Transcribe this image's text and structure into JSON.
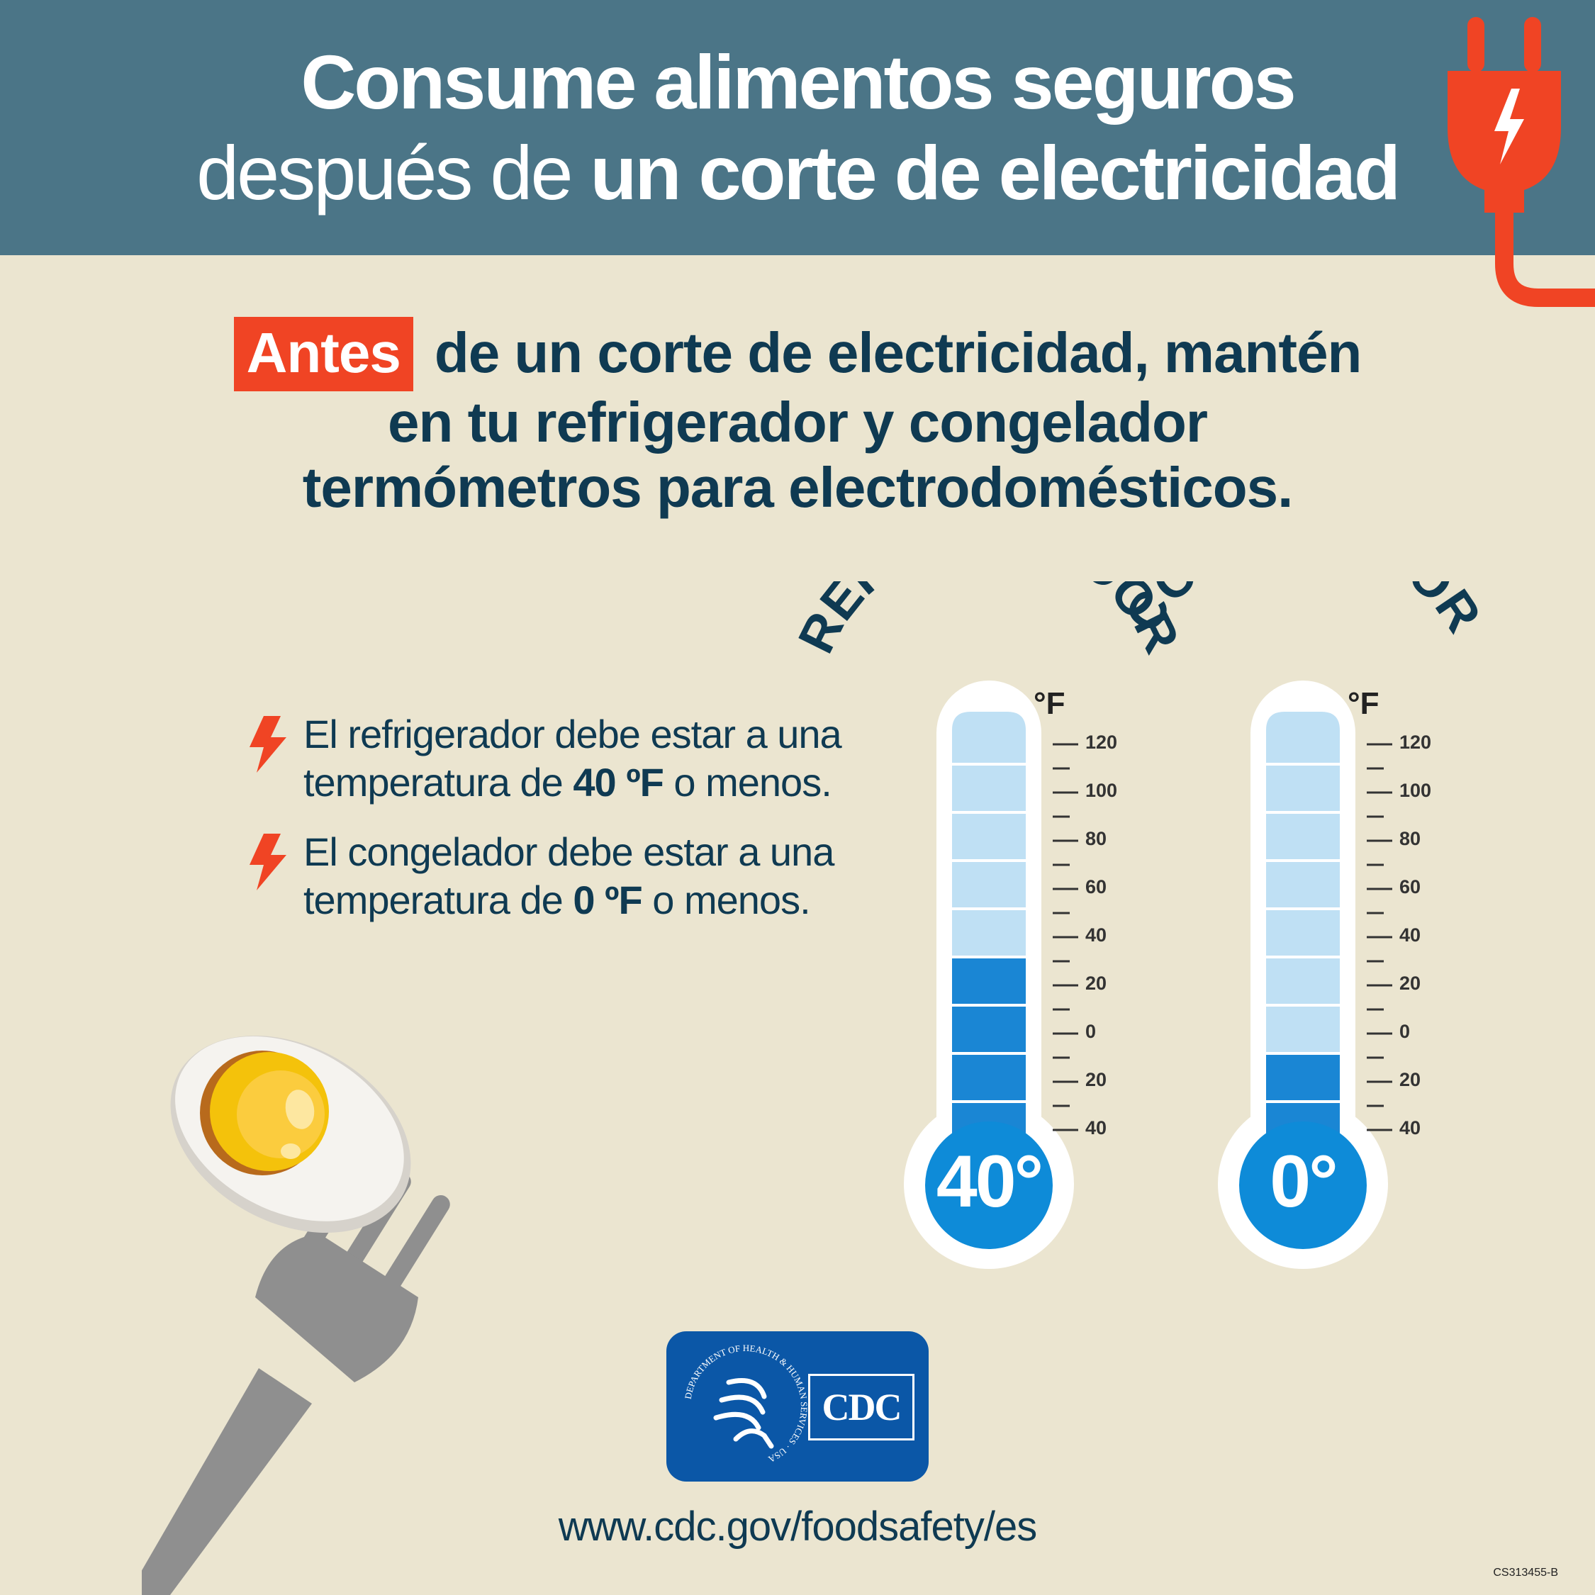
{
  "header": {
    "title_line1": "Consume alimentos seguros",
    "title_line2_light": "después de ",
    "title_line2_bold": "un corte de electricidad",
    "plug_icon": "plug-lightning-icon",
    "plug_color": "#f04424",
    "bg_color": "#4b7587"
  },
  "subtitle": {
    "highlight": "Antes",
    "line1_rest": "de un corte de electricidad, mantén",
    "line2": "en tu refrigerador y congelador",
    "line3": "termómetros para electrodomésticos."
  },
  "bullets": [
    {
      "icon": "lightning-bolt-icon",
      "line1": "El refrigerador debe estar a una",
      "line2_pre": "temperatura de ",
      "line2_bold": "40 ºF",
      "line2_post": " o menos."
    },
    {
      "icon": "lightning-bolt-icon",
      "line1": "El congelador debe estar a una",
      "line2_pre": "temperatura de ",
      "line2_bold": "0 ºF",
      "line2_post": " o menos."
    }
  ],
  "thermometers": [
    {
      "label": "REFRIGERADOR",
      "unit": "°F",
      "reading": "40°",
      "level_f": 40
    },
    {
      "label": "CONGELADOR",
      "unit": "°F",
      "reading": "0°",
      "level_f": 0
    }
  ],
  "scale": [
    "120",
    "100",
    "80",
    "60",
    "40",
    "20",
    "0",
    "20",
    "40"
  ],
  "footer": {
    "logo_hhs": "DEPARTMENT OF HEALTH & HUMAN SERVICES · USA",
    "logo_cdc": "CDC",
    "url": "www.cdc.gov/foodsafety/es",
    "code": "CS313455-B"
  },
  "colors": {
    "background": "#ebe5d0",
    "text_dark": "#0f3a52",
    "accent": "#f04424",
    "fill_dark": "#1a86d4",
    "fill_light": "#bfe0f4",
    "bulb": "#0e8bd8"
  },
  "illustration": {
    "icon": "egg-on-fork-icon"
  }
}
